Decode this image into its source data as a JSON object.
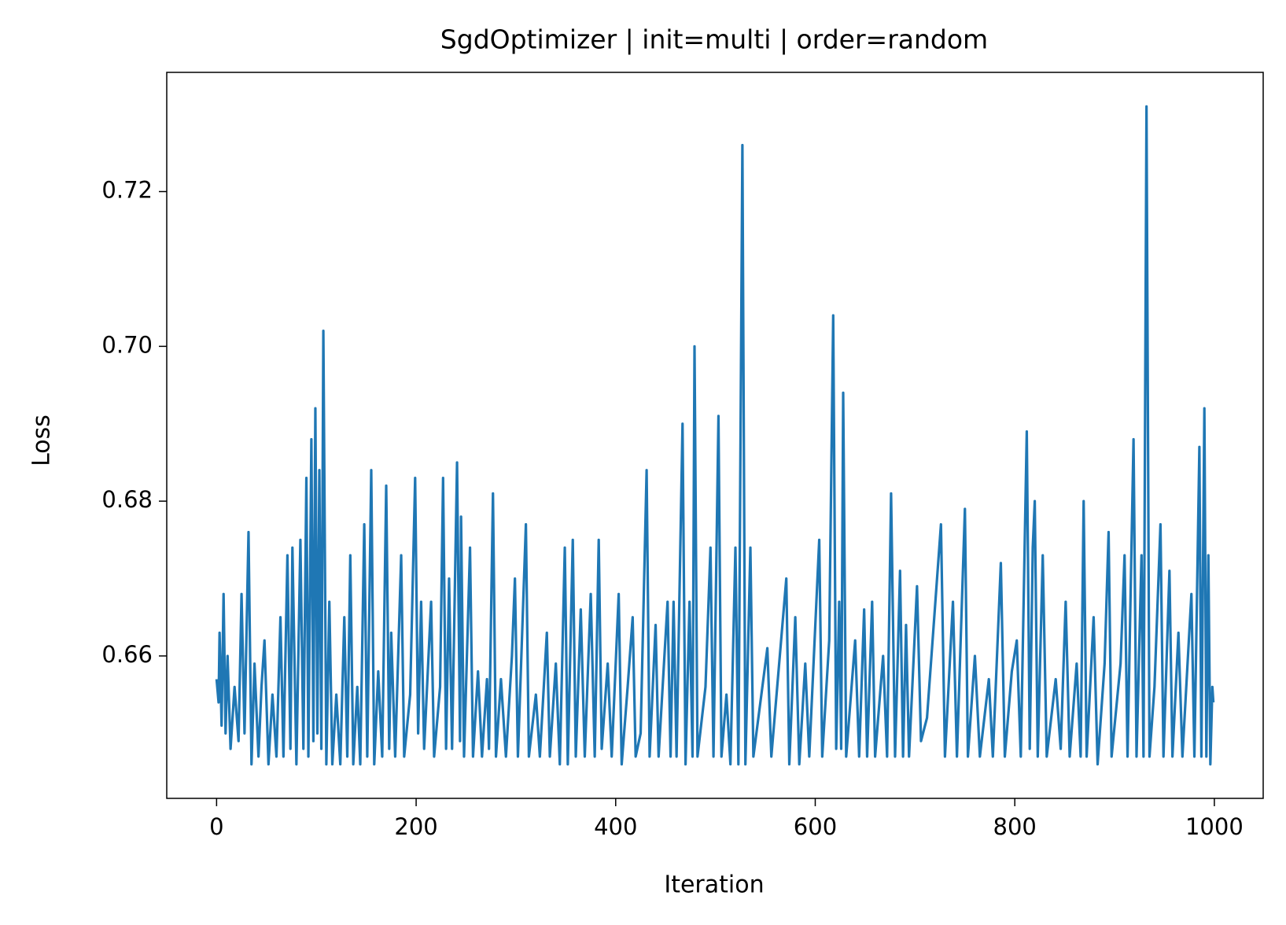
{
  "chart_data": {
    "type": "line",
    "title": "SgdOptimizer | init=multi | order=random",
    "xlabel": "Iteration",
    "ylabel": "Loss",
    "color": "#1f77b4",
    "x": [
      0,
      2,
      3,
      5,
      7,
      9,
      11,
      14,
      18,
      22,
      25,
      28,
      32,
      35,
      38,
      42,
      45,
      48,
      52,
      56,
      60,
      64,
      67,
      71,
      74,
      76,
      80,
      84,
      87,
      90,
      92,
      95,
      97,
      99,
      101,
      103,
      105,
      107,
      110,
      113,
      116,
      120,
      124,
      128,
      131,
      134,
      137,
      141,
      144,
      148,
      151,
      155,
      158,
      162,
      166,
      170,
      173,
      175,
      179,
      185,
      188,
      194,
      199,
      202,
      205,
      208,
      215,
      218,
      224,
      227,
      230,
      233,
      236,
      241,
      244,
      245,
      248,
      254,
      257,
      262,
      266,
      271,
      273,
      277,
      280,
      285,
      290,
      296,
      299,
      302,
      310,
      313,
      320,
      324,
      331,
      334,
      340,
      344,
      349,
      352,
      357,
      360,
      365,
      369,
      375,
      379,
      383,
      386,
      392,
      396,
      403,
      406,
      412,
      417,
      420,
      425,
      431,
      434,
      440,
      443,
      452,
      455,
      458,
      461,
      467,
      470,
      474,
      477,
      479,
      482,
      490,
      495,
      498,
      503,
      506,
      511,
      515,
      520,
      523,
      527,
      530,
      535,
      538,
      545,
      552,
      556,
      571,
      574,
      580,
      584,
      590,
      594,
      604,
      607,
      614,
      618,
      621,
      624,
      626,
      628,
      631,
      640,
      644,
      649,
      652,
      657,
      660,
      668,
      672,
      676,
      680,
      685,
      688,
      691,
      694,
      702,
      706,
      712,
      726,
      730,
      738,
      742,
      750,
      753,
      760,
      765,
      774,
      778,
      786,
      790,
      797,
      802,
      806,
      812,
      815,
      818,
      820,
      823,
      828,
      832,
      841,
      846,
      851,
      855,
      862,
      866,
      869,
      872,
      879,
      883,
      890,
      894,
      897,
      906,
      910,
      913,
      919,
      922,
      927,
      929,
      932,
      935,
      940,
      946,
      949,
      955,
      958,
      964,
      968,
      977,
      980,
      985,
      987,
      990,
      992,
      994,
      996,
      998,
      999
    ],
    "values": [
      0.657,
      0.654,
      0.663,
      0.651,
      0.668,
      0.65,
      0.66,
      0.648,
      0.656,
      0.649,
      0.668,
      0.65,
      0.676,
      0.646,
      0.659,
      0.647,
      0.656,
      0.662,
      0.646,
      0.655,
      0.647,
      0.665,
      0.647,
      0.673,
      0.648,
      0.674,
      0.646,
      0.675,
      0.648,
      0.683,
      0.647,
      0.688,
      0.649,
      0.692,
      0.65,
      0.684,
      0.648,
      0.702,
      0.646,
      0.667,
      0.646,
      0.655,
      0.646,
      0.665,
      0.647,
      0.673,
      0.646,
      0.656,
      0.646,
      0.677,
      0.647,
      0.684,
      0.646,
      0.658,
      0.647,
      0.682,
      0.648,
      0.663,
      0.647,
      0.673,
      0.647,
      0.655,
      0.683,
      0.65,
      0.667,
      0.648,
      0.667,
      0.647,
      0.656,
      0.683,
      0.648,
      0.67,
      0.648,
      0.685,
      0.649,
      0.678,
      0.647,
      0.674,
      0.647,
      0.658,
      0.647,
      0.657,
      0.648,
      0.681,
      0.647,
      0.657,
      0.647,
      0.66,
      0.67,
      0.647,
      0.677,
      0.647,
      0.655,
      0.647,
      0.663,
      0.647,
      0.659,
      0.646,
      0.674,
      0.646,
      0.675,
      0.647,
      0.666,
      0.647,
      0.668,
      0.647,
      0.675,
      0.648,
      0.659,
      0.647,
      0.668,
      0.646,
      0.656,
      0.665,
      0.647,
      0.65,
      0.684,
      0.647,
      0.664,
      0.647,
      0.667,
      0.647,
      0.667,
      0.647,
      0.69,
      0.646,
      0.667,
      0.647,
      0.7,
      0.647,
      0.656,
      0.674,
      0.647,
      0.691,
      0.647,
      0.655,
      0.646,
      0.674,
      0.646,
      0.726,
      0.646,
      0.674,
      0.647,
      0.654,
      0.661,
      0.647,
      0.67,
      0.646,
      0.665,
      0.646,
      0.659,
      0.647,
      0.675,
      0.647,
      0.662,
      0.704,
      0.648,
      0.667,
      0.648,
      0.694,
      0.647,
      0.662,
      0.647,
      0.666,
      0.647,
      0.667,
      0.647,
      0.66,
      0.647,
      0.681,
      0.647,
      0.671,
      0.647,
      0.664,
      0.647,
      0.669,
      0.649,
      0.652,
      0.677,
      0.647,
      0.667,
      0.647,
      0.679,
      0.647,
      0.66,
      0.647,
      0.657,
      0.647,
      0.672,
      0.647,
      0.658,
      0.662,
      0.647,
      0.689,
      0.648,
      0.674,
      0.68,
      0.647,
      0.673,
      0.647,
      0.657,
      0.648,
      0.667,
      0.647,
      0.659,
      0.647,
      0.68,
      0.647,
      0.665,
      0.646,
      0.659,
      0.676,
      0.647,
      0.659,
      0.673,
      0.647,
      0.688,
      0.647,
      0.673,
      0.647,
      0.731,
      0.647,
      0.656,
      0.677,
      0.647,
      0.671,
      0.647,
      0.663,
      0.647,
      0.668,
      0.647,
      0.687,
      0.647,
      0.692,
      0.647,
      0.673,
      0.646,
      0.656,
      0.654
    ],
    "xlim": [
      -49.95,
      1048.95
    ],
    "ylim": [
      0.6416,
      0.7354
    ],
    "xticks": [
      0,
      200,
      400,
      600,
      800,
      1000
    ],
    "yticks": [
      0.66,
      0.68,
      {
        "value": 0.7,
        "label": "0.70"
      },
      0.72
    ]
  }
}
